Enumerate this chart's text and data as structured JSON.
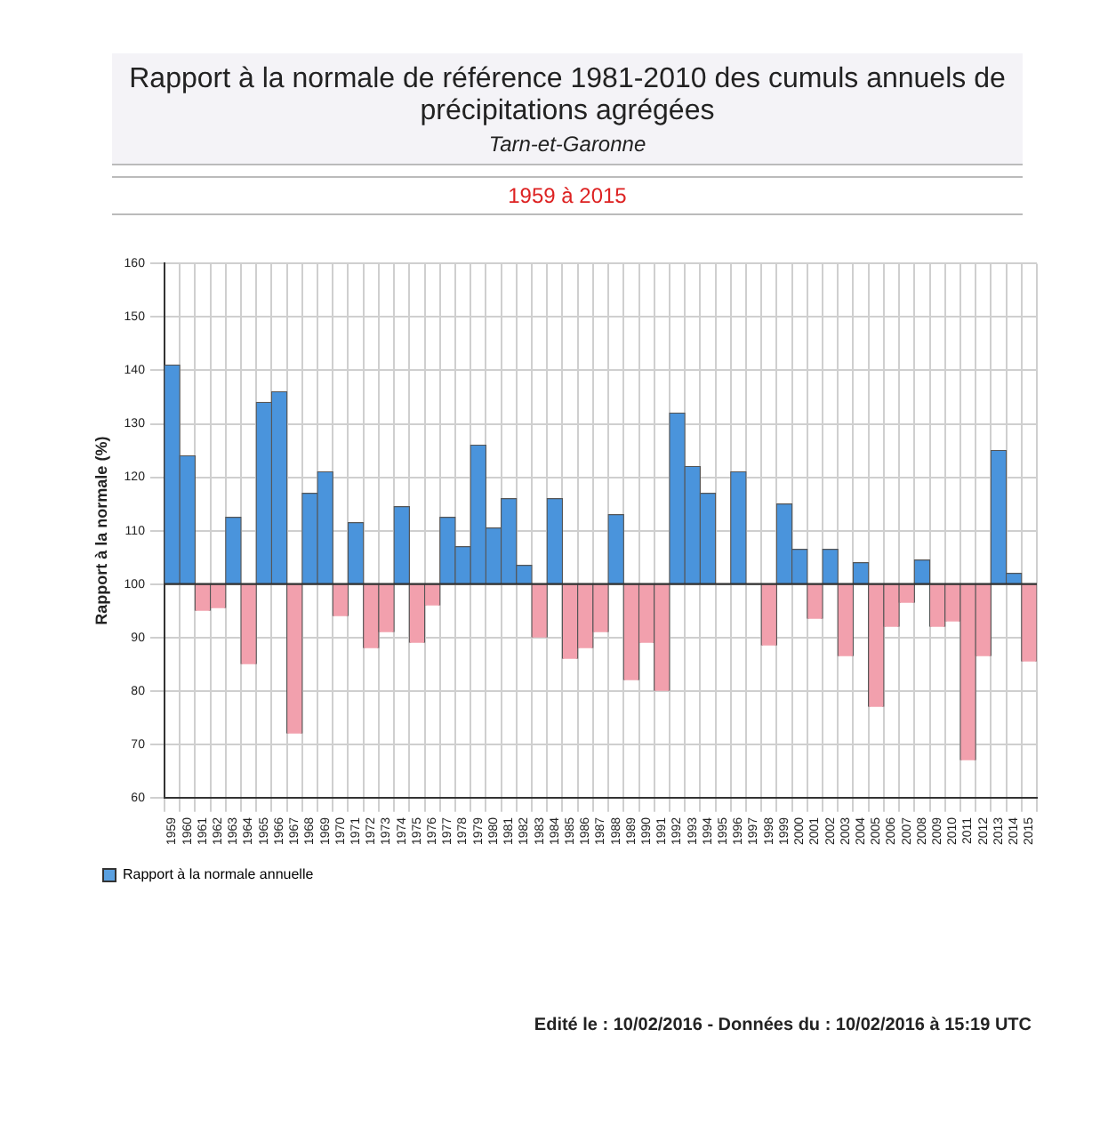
{
  "chart_data": {
    "type": "bar",
    "title": "Rapport à la normale de référence 1981-2010 des cumuls annuels de précipitations agrégées",
    "subtitle": "Tarn-et-Garonne",
    "ylabel": "Rapport à la normale (%)",
    "annotations": [
      "1959 à 2015",
      "Edité le : 10/02/2016 - Données du : 10/02/2016 à 15:19 UTC"
    ],
    "categories": [
      "1959",
      "1960",
      "1961",
      "1962",
      "1963",
      "1964",
      "1965",
      "1966",
      "1967",
      "1968",
      "1969",
      "1970",
      "1971",
      "1972",
      "1973",
      "1974",
      "1975",
      "1976",
      "1977",
      "1978",
      "1979",
      "1980",
      "1981",
      "1982",
      "1983",
      "1984",
      "1985",
      "1986",
      "1987",
      "1988",
      "1989",
      "1990",
      "1991",
      "1992",
      "1993",
      "1994",
      "1995",
      "1996",
      "1997",
      "1998",
      "1999",
      "2000",
      "2001",
      "2002",
      "2003",
      "2004",
      "2005",
      "2006",
      "2007",
      "2008",
      "2009",
      "2010",
      "2011",
      "2012",
      "2013",
      "2014",
      "2015"
    ],
    "series": [
      {
        "name": "Rapport à la normale annuelle",
        "color": "#5aa0e0",
        "base": [
          100,
          100,
          100,
          100,
          100,
          100,
          100,
          100,
          100,
          100,
          100,
          100,
          100,
          100,
          100,
          100,
          100,
          100,
          100,
          100,
          100,
          100,
          100,
          100,
          100,
          100,
          100,
          100,
          100,
          100,
          100,
          100,
          100,
          100,
          100,
          100,
          100,
          100,
          100,
          100,
          100,
          100,
          100,
          100,
          100,
          100,
          100,
          100,
          100,
          100,
          100,
          100,
          100,
          100,
          100,
          100,
          100
        ],
        "values": [
          41,
          24,
          -5,
          -4.5,
          12.5,
          -15,
          34,
          36,
          -28,
          17,
          21,
          -6,
          11.5,
          -12,
          -9,
          14.5,
          -11,
          -4,
          12.5,
          7,
          26,
          10.5,
          16,
          3.5,
          -10,
          16,
          -14,
          -12,
          -9,
          13,
          -18,
          -11,
          -20,
          32,
          22,
          17,
          0,
          21,
          0,
          -11.5,
          15,
          6.5,
          -6.5,
          6.5,
          -13.5,
          4,
          -23,
          -8,
          -3.5,
          4.5,
          -8,
          -7,
          -33,
          -13.5,
          25,
          2,
          -14.5
        ],
        "colors": [
          "#4a94dc",
          "#4a94dc",
          "#f2a0ad",
          "#f2a0ad",
          "#4a94dc",
          "#f2a0ad",
          "#4a94dc",
          "#4a94dc",
          "#f2a0ad",
          "#4a94dc",
          "#4a94dc",
          "#f2a0ad",
          "#4a94dc",
          "#f2a0ad",
          "#f2a0ad",
          "#4a94dc",
          "#f2a0ad",
          "#f2a0ad",
          "#4a94dc",
          "#4a94dc",
          "#4a94dc",
          "#4a94dc",
          "#4a94dc",
          "#4a94dc",
          "#f2a0ad",
          "#4a94dc",
          "#f2a0ad",
          "#f2a0ad",
          "#f2a0ad",
          "#4a94dc",
          "#f2a0ad",
          "#f2a0ad",
          "#f2a0ad",
          "#4a94dc",
          "#4a94dc",
          "#4a94dc",
          "#4a94dc",
          "#4a94dc",
          "#4a94dc",
          "#f2a0ad",
          "#4a94dc",
          "#4a94dc",
          "#f2a0ad",
          "#4a94dc",
          "#f2a0ad",
          "#4a94dc",
          "#f2a0ad",
          "#f2a0ad",
          "#f2a0ad",
          "#4a94dc",
          "#f2a0ad",
          "#f2a0ad",
          "#f2a0ad",
          "#f2a0ad",
          "#4a94dc",
          "#4a94dc",
          "#f2a0ad"
        ]
      }
    ],
    "ylim": [
      60,
      160
    ],
    "yticks": [
      60,
      70,
      80,
      90,
      100,
      110,
      120,
      130,
      140,
      150,
      160
    ],
    "ref_lines": [
      {
        "axis": "y",
        "value": 100,
        "color": "#333333"
      }
    ],
    "grid": true,
    "legend": "bottom left"
  }
}
